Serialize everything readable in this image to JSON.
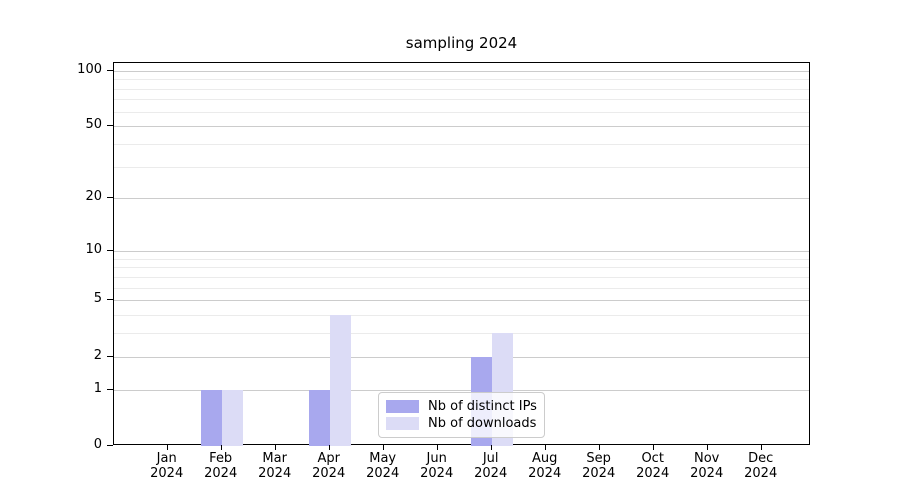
{
  "figure": {
    "title": "sampling 2024"
  },
  "colors": {
    "distinct_ips": "#a8a8ee",
    "downloads": "#dcdcf6",
    "grid_major": "#cccccc",
    "grid_minor": "#ebebeb",
    "axis_border": "#000000",
    "legend_border": "#cccccc",
    "background": "#ffffff"
  },
  "chart_data": {
    "type": "bar",
    "title": "sampling 2024",
    "categories": [
      "Jan",
      "Feb",
      "Mar",
      "Apr",
      "May",
      "Jun",
      "Jul",
      "Aug",
      "Sep",
      "Oct",
      "Nov",
      "Dec"
    ],
    "x_tick_year": "2024",
    "series": [
      {
        "name": "Nb of distinct IPs",
        "color": "#a8a8ee",
        "values": [
          0,
          1,
          0,
          1,
          0,
          0,
          2,
          0,
          0,
          0,
          0,
          0
        ]
      },
      {
        "name": "Nb of downloads",
        "color": "#dcdcf6",
        "values": [
          0,
          1,
          0,
          4,
          0,
          0,
          3,
          0,
          0,
          0,
          0,
          0
        ]
      }
    ],
    "y_scale": "log1p",
    "ylim": [
      0,
      110
    ],
    "y_major_ticks": [
      0,
      1,
      2,
      5,
      10,
      20,
      50,
      100
    ],
    "y_minor_gridlines": [
      3,
      4,
      6,
      7,
      8,
      9,
      30,
      40,
      60,
      70,
      80,
      90
    ],
    "grid": true,
    "legend_position": "lower center"
  }
}
